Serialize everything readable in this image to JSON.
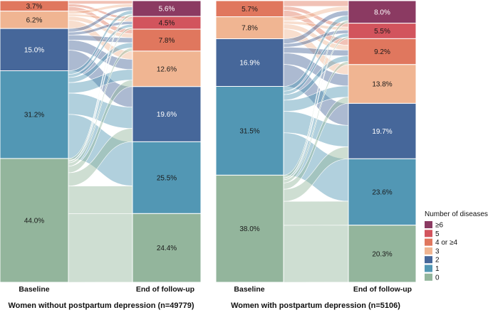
{
  "colors": {
    "ge6": "#8b3a62",
    "n5": "#d2545d",
    "n4": "#e0775e",
    "n3": "#f0b592",
    "n2": "#46679a",
    "n1": "#5297b4",
    "n0": "#93b59c"
  },
  "legend": {
    "title": "Number of diseases",
    "items": [
      {
        "key": "ge6",
        "label": "≥6",
        "color": "#8b3a62"
      },
      {
        "key": "n5",
        "label": "5",
        "color": "#d2545d"
      },
      {
        "key": "n4",
        "label": "4 or ≥4",
        "color": "#e0775e"
      },
      {
        "key": "n3",
        "label": "3",
        "color": "#f0b592"
      },
      {
        "key": "n2",
        "label": "2",
        "color": "#46679a"
      },
      {
        "key": "n1",
        "label": "1",
        "color": "#5297b4"
      },
      {
        "key": "n0",
        "label": "0",
        "color": "#93b59c"
      }
    ]
  },
  "chart_data": [
    {
      "type": "sankey",
      "title": "Women without postpartum depression (n=49779)",
      "stage_labels": [
        "Baseline",
        "End of follow-up"
      ],
      "baseline": [
        {
          "key": "n4",
          "percent": 3.7,
          "label": "3.7%"
        },
        {
          "key": "n3",
          "percent": 6.2,
          "label": "6.2%"
        },
        {
          "key": "n2",
          "percent": 15.0,
          "label": "15.0%"
        },
        {
          "key": "n1",
          "percent": 31.2,
          "label": "31.2%"
        },
        {
          "key": "n0",
          "percent": 44.0,
          "label": "44.0%"
        }
      ],
      "end": [
        {
          "key": "ge6",
          "percent": 5.6,
          "label": "5.6%"
        },
        {
          "key": "n5",
          "percent": 4.5,
          "label": "4.5%"
        },
        {
          "key": "n4",
          "percent": 7.8,
          "label": "7.8%"
        },
        {
          "key": "n3",
          "percent": 12.6,
          "label": "12.6%"
        },
        {
          "key": "n2",
          "percent": 19.6,
          "label": "19.6%"
        },
        {
          "key": "n1",
          "percent": 25.5,
          "label": "25.5%"
        },
        {
          "key": "n0",
          "percent": 24.4,
          "label": "24.4%"
        }
      ]
    },
    {
      "type": "sankey",
      "title": "Women with postpartum depression (n=5106)",
      "stage_labels": [
        "Baseline",
        "End of follow-up"
      ],
      "baseline": [
        {
          "key": "n4",
          "percent": 5.7,
          "label": "5.7%"
        },
        {
          "key": "n3",
          "percent": 7.8,
          "label": "7.8%"
        },
        {
          "key": "n2",
          "percent": 16.9,
          "label": "16.9%"
        },
        {
          "key": "n1",
          "percent": 31.5,
          "label": "31.5%"
        },
        {
          "key": "n0",
          "percent": 38.0,
          "label": "38.0%"
        }
      ],
      "end": [
        {
          "key": "ge6",
          "percent": 8.0,
          "label": "8.0%"
        },
        {
          "key": "n5",
          "percent": 5.5,
          "label": "5.5%"
        },
        {
          "key": "n4",
          "percent": 9.2,
          "label": "9.2%"
        },
        {
          "key": "n3",
          "percent": 13.8,
          "label": "13.8%"
        },
        {
          "key": "n2",
          "percent": 19.7,
          "label": "19.7%"
        },
        {
          "key": "n1",
          "percent": 23.6,
          "label": "23.6%"
        },
        {
          "key": "n0",
          "percent": 20.3,
          "label": "20.3%"
        }
      ]
    }
  ]
}
